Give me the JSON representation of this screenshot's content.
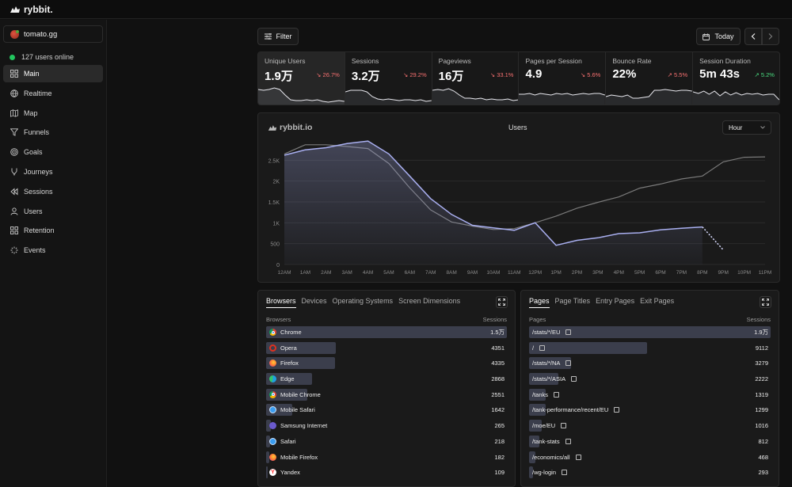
{
  "app": {
    "brand": "rybbit."
  },
  "sidebar": {
    "site": "tomato.gg",
    "online": "127 users online",
    "items": [
      {
        "label": "Main",
        "icon": "grid-icon",
        "active": true
      },
      {
        "label": "Realtime",
        "icon": "globe-icon"
      },
      {
        "label": "Map",
        "icon": "map-icon"
      },
      {
        "label": "Funnels",
        "icon": "funnel-icon"
      },
      {
        "label": "Goals",
        "icon": "target-icon"
      },
      {
        "label": "Journeys",
        "icon": "branch-icon"
      },
      {
        "label": "Sessions",
        "icon": "rewind-icon"
      },
      {
        "label": "Users",
        "icon": "user-icon"
      },
      {
        "label": "Retention",
        "icon": "grid-icon"
      },
      {
        "label": "Events",
        "icon": "sparkle-icon"
      }
    ]
  },
  "toolbar": {
    "filter": "Filter",
    "date": "Today"
  },
  "stats": [
    {
      "label": "Unique Users",
      "value": "1.9万",
      "change": "26.7%",
      "dir": "down"
    },
    {
      "label": "Sessions",
      "value": "3.2万",
      "change": "29.2%",
      "dir": "down"
    },
    {
      "label": "Pageviews",
      "value": "16万",
      "change": "33.1%",
      "dir": "down"
    },
    {
      "label": "Pages per Session",
      "value": "4.9",
      "change": "5.6%",
      "dir": "down"
    },
    {
      "label": "Bounce Rate",
      "value": "22%",
      "change": "5.5%",
      "dir": "up-bad"
    },
    {
      "label": "Session Duration",
      "value": "5m 43s",
      "change": "5.2%",
      "dir": "up"
    }
  ],
  "chart": {
    "brand": "rybbit.io",
    "title": "Users",
    "bucket": "Hour"
  },
  "chart_data": {
    "type": "area",
    "title": "Users",
    "x": [
      "12AM",
      "1AM",
      "2AM",
      "3AM",
      "4AM",
      "5AM",
      "6AM",
      "7AM",
      "8AM",
      "9AM",
      "10AM",
      "11AM",
      "12PM",
      "1PM",
      "2PM",
      "3PM",
      "4PM",
      "5PM",
      "6PM",
      "7PM",
      "8PM",
      "9PM",
      "10PM",
      "11PM"
    ],
    "yticks": [
      0,
      500,
      1000,
      1500,
      2000,
      2500
    ],
    "ytick_labels": [
      "0",
      "500",
      "1K",
      "1.5K",
      "2K",
      "2.5K"
    ],
    "ylim": [
      0,
      3000
    ],
    "series": [
      {
        "values": [
          2620,
          2750,
          2800,
          2900,
          2960,
          2650,
          2120,
          1580,
          1200,
          940,
          880,
          820,
          1000,
          460,
          580,
          640,
          740,
          760,
          830,
          870,
          900,
          null,
          null,
          null
        ],
        "projected": [
          900,
          350
        ]
      },
      {
        "values": [
          2650,
          2870,
          2870,
          2830,
          2780,
          2420,
          1840,
          1310,
          1020,
          920,
          840,
          860,
          1000,
          1160,
          1350,
          1490,
          1620,
          1830,
          1930,
          2050,
          2120,
          2460,
          2570,
          2580
        ]
      }
    ],
    "legend": "none",
    "grid": true
  },
  "browsers": {
    "tabs": [
      "Browsers",
      "Devices",
      "Operating Systems",
      "Screen Dimensions"
    ],
    "col_left": "Browsers",
    "col_right": "Sessions",
    "rows": [
      {
        "label": "Chrome",
        "value": "1.5万",
        "pct": 1.0,
        "icon": "chrome-icon",
        "color": "#4c8bf5"
      },
      {
        "label": "Opera",
        "value": "4351",
        "pct": 0.29,
        "icon": "opera-icon",
        "color": "#e0301e"
      },
      {
        "label": "Firefox",
        "value": "4335",
        "pct": 0.285,
        "icon": "firefox-icon",
        "color": "#ff7139"
      },
      {
        "label": "Edge",
        "value": "2868",
        "pct": 0.19,
        "icon": "edge-icon",
        "color": "#1fa1e0"
      },
      {
        "label": "Mobile Chrome",
        "value": "2551",
        "pct": 0.17,
        "icon": "chrome-icon",
        "color": "#4c8bf5"
      },
      {
        "label": "Mobile Safari",
        "value": "1642",
        "pct": 0.11,
        "icon": "safari-icon",
        "color": "#3b9df0"
      },
      {
        "label": "Samsung Internet",
        "value": "265",
        "pct": 0.02,
        "icon": "samsung-icon",
        "color": "#6a5acd"
      },
      {
        "label": "Safari",
        "value": "218",
        "pct": 0.015,
        "icon": "safari-icon",
        "color": "#3b9df0"
      },
      {
        "label": "Mobile Firefox",
        "value": "182",
        "pct": 0.012,
        "icon": "firefox-icon",
        "color": "#ff7139"
      },
      {
        "label": "Yandex",
        "value": "109",
        "pct": 0.008,
        "icon": "yandex-icon",
        "color": "#ff2b2b"
      }
    ]
  },
  "pages": {
    "tabs": [
      "Pages",
      "Page Titles",
      "Entry Pages",
      "Exit Pages"
    ],
    "col_left": "Pages",
    "col_right": "Sessions",
    "rows": [
      {
        "label": "/stats/*/EU",
        "value": "1.9万",
        "pct": 1.0
      },
      {
        "label": "/",
        "value": "9112",
        "pct": 0.49
      },
      {
        "label": "/stats/*/NA",
        "value": "3279",
        "pct": 0.175
      },
      {
        "label": "/stats/*/ASIA",
        "value": "2222",
        "pct": 0.12
      },
      {
        "label": "/tanks",
        "value": "1319",
        "pct": 0.07
      },
      {
        "label": "/tank-performance/recent/EU",
        "value": "1299",
        "pct": 0.069
      },
      {
        "label": "/moe/EU",
        "value": "1016",
        "pct": 0.054
      },
      {
        "label": "/tank-stats",
        "value": "812",
        "pct": 0.043
      },
      {
        "label": "/economics/all",
        "value": "468",
        "pct": 0.025
      },
      {
        "label": "/wg-login",
        "value": "293",
        "pct": 0.016
      }
    ]
  }
}
